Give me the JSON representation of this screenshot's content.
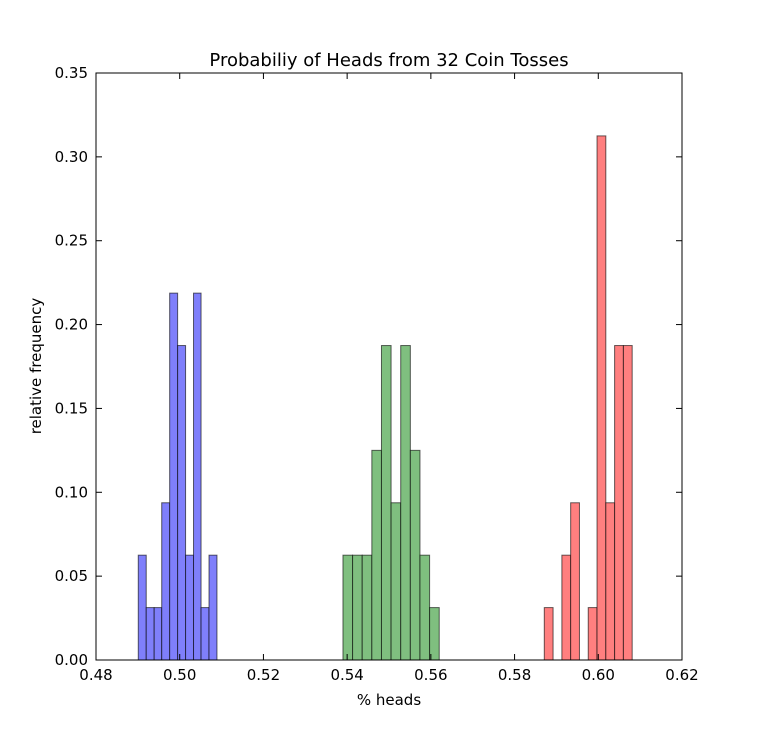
{
  "chart_data": {
    "type": "bar",
    "title": "Probabiliy of Heads from 32 Coin Tosses",
    "xlabel": "% heads",
    "ylabel": "relative frequency",
    "xlim": [
      0.48,
      0.62
    ],
    "ylim": [
      0.0,
      0.35
    ],
    "xticks": [
      "0.48",
      "0.50",
      "0.52",
      "0.54",
      "0.56",
      "0.58",
      "0.60",
      "0.62"
    ],
    "yticks": [
      "0.00",
      "0.05",
      "0.10",
      "0.15",
      "0.20",
      "0.25",
      "0.30",
      "0.35"
    ],
    "grid": false,
    "series": [
      {
        "color": "#7f7ffb",
        "alpha": 0.5,
        "bins": [
          {
            "x0": 0.4901,
            "x1": 0.492,
            "value": 0.0625
          },
          {
            "x0": 0.492,
            "x1": 0.4939,
            "value": 0.03125
          },
          {
            "x0": 0.4939,
            "x1": 0.4957,
            "value": 0.03125
          },
          {
            "x0": 0.4957,
            "x1": 0.4976,
            "value": 0.09375
          },
          {
            "x0": 0.4976,
            "x1": 0.4995,
            "value": 0.21875
          },
          {
            "x0": 0.4995,
            "x1": 0.5014,
            "value": 0.1875
          },
          {
            "x0": 0.5014,
            "x1": 0.5033,
            "value": 0.0625
          },
          {
            "x0": 0.5033,
            "x1": 0.5051,
            "value": 0.21875
          },
          {
            "x0": 0.5051,
            "x1": 0.507,
            "value": 0.03125
          },
          {
            "x0": 0.507,
            "x1": 0.5089,
            "value": 0.0625
          }
        ]
      },
      {
        "color": "#7fbf7f",
        "alpha": 0.5,
        "bins": [
          {
            "x0": 0.539,
            "x1": 0.5413,
            "value": 0.0625
          },
          {
            "x0": 0.5413,
            "x1": 0.5436,
            "value": 0.0625
          },
          {
            "x0": 0.5436,
            "x1": 0.5459,
            "value": 0.0625
          },
          {
            "x0": 0.5459,
            "x1": 0.5482,
            "value": 0.125
          },
          {
            "x0": 0.5482,
            "x1": 0.5505,
            "value": 0.1875
          },
          {
            "x0": 0.5505,
            "x1": 0.5528,
            "value": 0.09375
          },
          {
            "x0": 0.5528,
            "x1": 0.5551,
            "value": 0.1875
          },
          {
            "x0": 0.5551,
            "x1": 0.5574,
            "value": 0.125
          },
          {
            "x0": 0.5574,
            "x1": 0.5597,
            "value": 0.0625
          },
          {
            "x0": 0.5597,
            "x1": 0.562,
            "value": 0.03125
          }
        ]
      },
      {
        "color": "#ff7f7f",
        "alpha": 0.5,
        "bins": [
          {
            "x0": 0.5871,
            "x1": 0.5892,
            "value": 0.03125
          },
          {
            "x0": 0.5892,
            "x1": 0.5913,
            "value": 0.0
          },
          {
            "x0": 0.5913,
            "x1": 0.5934,
            "value": 0.0625
          },
          {
            "x0": 0.5934,
            "x1": 0.5955,
            "value": 0.09375
          },
          {
            "x0": 0.5955,
            "x1": 0.5976,
            "value": 0.0
          },
          {
            "x0": 0.5976,
            "x1": 0.5997,
            "value": 0.03125
          },
          {
            "x0": 0.5997,
            "x1": 0.6018,
            "value": 0.3125
          },
          {
            "x0": 0.6018,
            "x1": 0.6039,
            "value": 0.09375
          },
          {
            "x0": 0.6039,
            "x1": 0.606,
            "value": 0.1875
          },
          {
            "x0": 0.606,
            "x1": 0.6081,
            "value": 0.1875
          }
        ]
      }
    ]
  }
}
